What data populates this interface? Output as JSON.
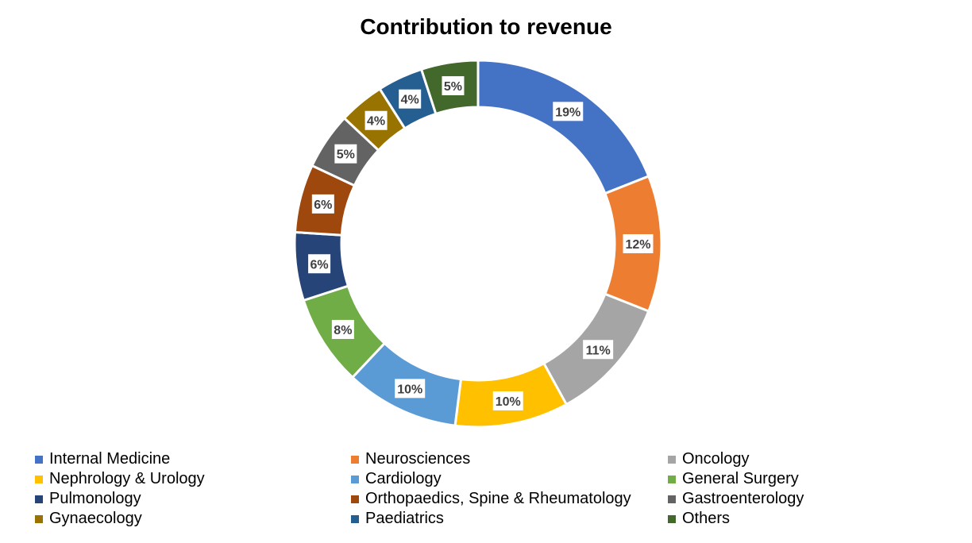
{
  "chart_data": {
    "type": "pie",
    "variant": "donut",
    "title": "Contribution to revenue",
    "legend_position": "bottom",
    "slices": [
      {
        "label": "Internal Medicine",
        "value": 19,
        "display": "19%",
        "color": "#4472C4"
      },
      {
        "label": "Neurosciences",
        "value": 12,
        "display": "12%",
        "color": "#ED7D31"
      },
      {
        "label": "Oncology",
        "value": 11,
        "display": "11%",
        "color": "#A5A5A5"
      },
      {
        "label": "Nephrology & Urology",
        "value": 10,
        "display": "10%",
        "color": "#FFC000"
      },
      {
        "label": "Cardiology",
        "value": 10,
        "display": "10%",
        "color": "#5B9BD5"
      },
      {
        "label": "General Surgery",
        "value": 8,
        "display": "8%",
        "color": "#70AD47"
      },
      {
        "label": "Pulmonology",
        "value": 6,
        "display": "6%",
        "color": "#264478"
      },
      {
        "label": "Orthopaedics, Spine & Rheumatology",
        "value": 6,
        "display": "6%",
        "color": "#9E480E"
      },
      {
        "label": "Gastroenterology",
        "value": 5,
        "display": "5%",
        "color": "#636363"
      },
      {
        "label": "Gynaecology",
        "value": 4,
        "display": "4%",
        "color": "#997300"
      },
      {
        "label": "Paediatrics",
        "value": 4,
        "display": "4%",
        "color": "#255E91"
      },
      {
        "label": "Others",
        "value": 5,
        "display": "5%",
        "color": "#43682B"
      }
    ]
  }
}
